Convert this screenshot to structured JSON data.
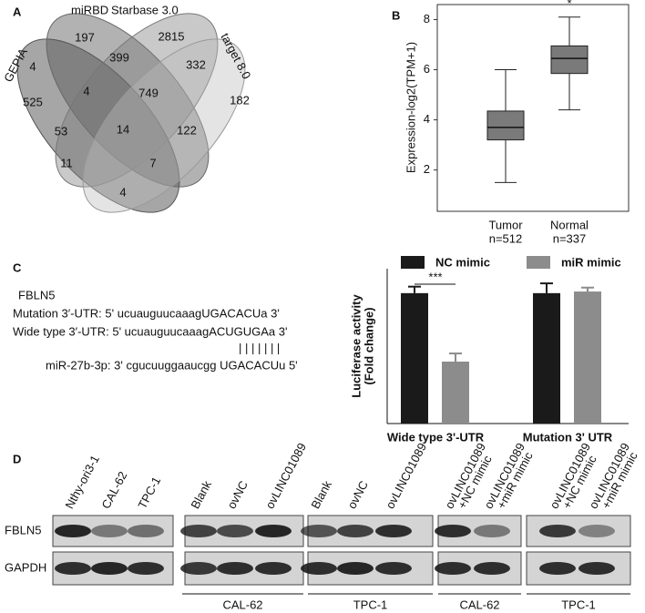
{
  "panels": [
    "A",
    "B",
    "C",
    "D"
  ],
  "venn": {
    "sets": [
      "GEPIA",
      "miRBD",
      "Starbase 3.0",
      "target 8.0"
    ],
    "regions": [
      197,
      2815,
      4,
      399,
      332,
      4,
      749,
      182,
      525,
      53,
      14,
      122,
      11,
      7,
      4
    ]
  },
  "chart_data": [
    {
      "type": "box",
      "ylabel": "Expression-log2(TPM+1)",
      "categories": [
        "Tumor",
        "Normal"
      ],
      "n_labels": [
        "n=512",
        "n=337"
      ],
      "boxes": [
        {
          "min": 1.5,
          "q1": 3.2,
          "median": 3.7,
          "q3": 4.35,
          "max": 6.0
        },
        {
          "min": 4.4,
          "q1": 5.85,
          "median": 6.45,
          "q3": 6.95,
          "max": 8.1
        }
      ],
      "color": "#7a7a7a",
      "annotation": "*",
      "ylim": [
        0.35,
        8.6
      ],
      "yticks": [
        2,
        4,
        6,
        8
      ]
    },
    {
      "type": "bar",
      "ylabel": [
        "Luciferase activity",
        "(Fold change)"
      ],
      "categories": [
        "Wide type 3'-UTR",
        "Mutation 3' UTR"
      ],
      "series": [
        {
          "name": "NC mimic",
          "color": "#1a1a1a",
          "values": [
            0.4,
            0.4
          ],
          "errors": [
            0.02,
            0.03
          ]
        },
        {
          "name": "miR mimic",
          "color": "#8c8c8c",
          "values": [
            0.19,
            0.405
          ],
          "errors": [
            0.025,
            0.012
          ]
        }
      ],
      "annotation": "***",
      "ylim": [
        0,
        0.475
      ]
    }
  ],
  "sequence": {
    "gene": "FBLN5",
    "lines": [
      "Mutation 3′-UTR:  5' ucuauguucaaagUGACACUa 3'",
      "Wide type 3′-UTR:  5' ucuauguucaaagACUGUGAa 3'",
      "| | | | | | |",
      "miR-27b-3p: 3' cgucuuggaaucgg UGACACUu 5'"
    ]
  },
  "blot": {
    "lanes": [
      [
        "Nthy-ori3-1"
      ],
      [
        "CAL-62"
      ],
      [
        "TPC-1"
      ],
      [
        "Blank"
      ],
      [
        "ovNC"
      ],
      [
        "ovLINC01089"
      ],
      [
        "Blank"
      ],
      [
        "ovNC"
      ],
      [
        "ovLINC01089"
      ],
      [
        "ovLINC01089",
        "+NC mimic"
      ],
      [
        "ovLINC01089",
        "+miR mimic"
      ],
      [
        "ovLINC01089",
        "+NC mimic"
      ],
      [
        "ovLINC01089",
        "+miR mimic"
      ]
    ],
    "rows": [
      "FBLN5",
      "GAPDH"
    ],
    "groups": [
      "CAL-62",
      "TPC-1",
      "CAL-62",
      "TPC-1"
    ]
  }
}
